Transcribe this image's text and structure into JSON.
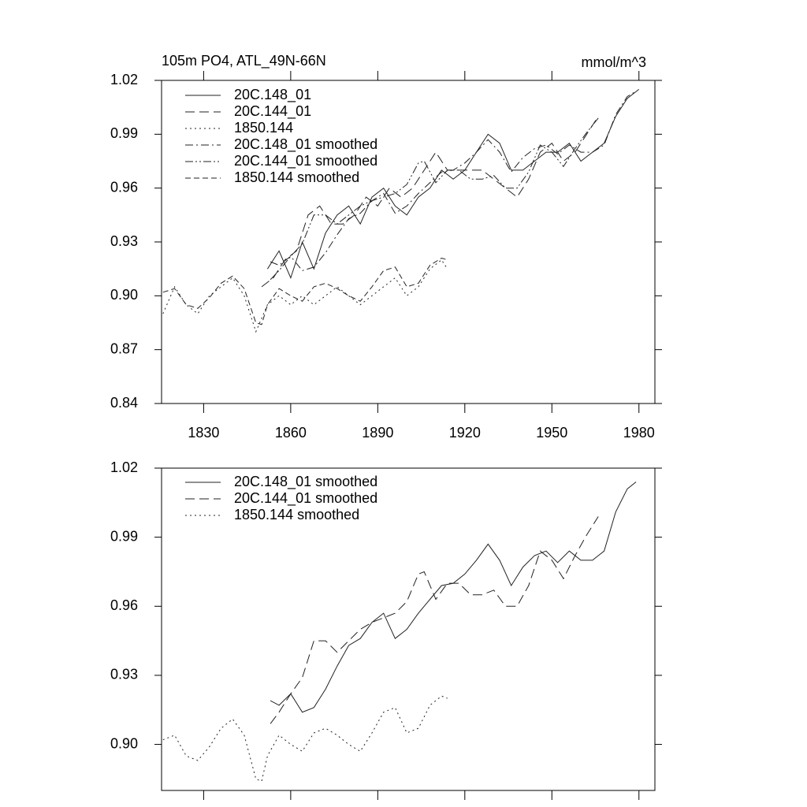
{
  "chart_data": [
    {
      "type": "line",
      "title": "105m PO4, ATL_49N-66N",
      "units": "mmol/m^3",
      "xlim": [
        1815.5,
        1985.5
      ],
      "xticks": [
        1830,
        1860,
        1890,
        1920,
        1950,
        1980
      ],
      "ylim": [
        0.84,
        1.02
      ],
      "yticks": [
        0.84,
        0.87,
        {
          "value": 0.9,
          "label": "0.90"
        },
        0.93,
        0.96,
        0.99,
        1.02
      ],
      "series": [
        {
          "name": "20C.148_01",
          "color": "#222222",
          "dash": "solid",
          "x": [
            1852,
            1856,
            1860,
            1864,
            1868,
            1872,
            1876,
            1880,
            1884,
            1888,
            1892,
            1896,
            1900,
            1904,
            1908,
            1912,
            1916,
            1920,
            1924,
            1928,
            1932,
            1936,
            1940,
            1944,
            1948,
            1952,
            1956,
            1960,
            1964,
            1968,
            1972,
            1976,
            1980
          ],
          "values": [
            0.915,
            0.925,
            0.91,
            0.93,
            0.915,
            0.935,
            0.945,
            0.95,
            0.94,
            0.955,
            0.96,
            0.95,
            0.945,
            0.955,
            0.96,
            0.97,
            0.965,
            0.97,
            0.98,
            0.99,
            0.985,
            0.97,
            0.97,
            0.975,
            0.98,
            0.98,
            0.985,
            0.975,
            0.98,
            0.985,
            1.0,
            1.01,
            1.015
          ]
        },
        {
          "name": "20C.144_01",
          "color": "#222222",
          "dash": "dash",
          "x": [
            1850,
            1854,
            1858,
            1862,
            1866,
            1870,
            1874,
            1878,
            1882,
            1886,
            1890,
            1894,
            1898,
            1902,
            1906,
            1910,
            1914,
            1918,
            1922,
            1926,
            1930,
            1934,
            1938,
            1942,
            1946,
            1950,
            1954,
            1958,
            1962,
            1966
          ],
          "values": [
            0.905,
            0.91,
            0.92,
            0.925,
            0.945,
            0.95,
            0.94,
            0.94,
            0.945,
            0.955,
            0.95,
            0.96,
            0.955,
            0.96,
            0.97,
            0.98,
            0.97,
            0.97,
            0.97,
            0.97,
            0.965,
            0.96,
            0.955,
            0.965,
            0.98,
            0.985,
            0.975,
            0.98,
            0.99,
            1.0
          ]
        },
        {
          "name": "1850.144",
          "color": "#222222",
          "dash": "dot",
          "x": [
            1816,
            1820,
            1824,
            1828,
            1832,
            1836,
            1840,
            1844,
            1848,
            1852,
            1856,
            1860,
            1864,
            1868,
            1872,
            1876,
            1880,
            1884,
            1888,
            1892,
            1896,
            1900,
            1904,
            1908,
            1912,
            1914
          ],
          "values": [
            0.89,
            0.905,
            0.895,
            0.89,
            0.9,
            0.905,
            0.91,
            0.9,
            0.88,
            0.895,
            0.9,
            0.895,
            0.9,
            0.895,
            0.9,
            0.905,
            0.9,
            0.895,
            0.9,
            0.905,
            0.91,
            0.9,
            0.905,
            0.915,
            0.92,
            0.915
          ]
        },
        {
          "name": "20C.148_01 smoothed",
          "color": "#222222",
          "dash": "dashdot",
          "x": [
            1853,
            1856,
            1860,
            1864,
            1868,
            1872,
            1876,
            1880,
            1884,
            1888,
            1892,
            1896,
            1900,
            1904,
            1908,
            1912,
            1916,
            1920,
            1924,
            1928,
            1932,
            1936,
            1940,
            1944,
            1948,
            1952,
            1956,
            1960,
            1964,
            1968,
            1972,
            1976,
            1979
          ],
          "values": [
            0.919,
            0.917,
            0.922,
            0.914,
            0.916,
            0.924,
            0.934,
            0.943,
            0.946,
            0.953,
            0.957,
            0.946,
            0.95,
            0.957,
            0.963,
            0.969,
            0.97,
            0.974,
            0.98,
            0.987,
            0.98,
            0.969,
            0.977,
            0.982,
            0.984,
            0.979,
            0.984,
            0.98,
            0.98,
            0.984,
            1.001,
            1.011,
            1.014
          ]
        },
        {
          "name": "20C.144_01 smoothed",
          "color": "#222222",
          "dash": "dashdotdot",
          "x": [
            1853,
            1856,
            1860,
            1864,
            1868,
            1872,
            1876,
            1880,
            1884,
            1888,
            1892,
            1896,
            1900,
            1904,
            1906,
            1910,
            1914,
            1918,
            1922,
            1926,
            1930,
            1934,
            1938,
            1942,
            1946,
            1950,
            1954,
            1958,
            1962,
            1966
          ],
          "values": [
            0.909,
            0.914,
            0.922,
            0.929,
            0.945,
            0.945,
            0.94,
            0.945,
            0.95,
            0.953,
            0.955,
            0.957,
            0.962,
            0.974,
            0.975,
            0.963,
            0.97,
            0.97,
            0.965,
            0.965,
            0.967,
            0.96,
            0.96,
            0.969,
            0.984,
            0.98,
            0.972,
            0.982,
            0.991,
            0.999
          ]
        },
        {
          "name": "1850.144 smoothed",
          "color": "#222222",
          "dash": "shortdash",
          "x": [
            1816,
            1820,
            1824,
            1828,
            1832,
            1836,
            1840,
            1844,
            1848,
            1850,
            1852,
            1856,
            1860,
            1864,
            1868,
            1872,
            1876,
            1880,
            1884,
            1888,
            1892,
            1896,
            1900,
            1904,
            1908,
            1912,
            1914
          ],
          "values": [
            0.902,
            0.904,
            0.895,
            0.893,
            0.899,
            0.907,
            0.911,
            0.904,
            0.885,
            0.884,
            0.895,
            0.904,
            0.9,
            0.897,
            0.905,
            0.907,
            0.904,
            0.9,
            0.897,
            0.905,
            0.914,
            0.916,
            0.905,
            0.907,
            0.917,
            0.921,
            0.92
          ]
        }
      ]
    },
    {
      "type": "line",
      "xlim": [
        1815.5,
        1985.5
      ],
      "xticks": [
        1830,
        1860,
        1890,
        1920,
        1950,
        1980
      ],
      "ylim": [
        0.88,
        1.02
      ],
      "yticks": [
        {
          "value": 0.9,
          "label": "0.90"
        },
        0.93,
        0.96,
        0.99,
        1.02
      ],
      "series": [
        {
          "name": "20C.148_01 smoothed",
          "color": "#222222",
          "dash": "solid",
          "x": [
            1853,
            1856,
            1860,
            1864,
            1868,
            1872,
            1876,
            1880,
            1884,
            1888,
            1892,
            1896,
            1900,
            1904,
            1908,
            1912,
            1916,
            1920,
            1924,
            1928,
            1932,
            1936,
            1940,
            1944,
            1948,
            1952,
            1956,
            1960,
            1964,
            1968,
            1972,
            1976,
            1979
          ],
          "values": [
            0.919,
            0.917,
            0.922,
            0.914,
            0.916,
            0.924,
            0.934,
            0.943,
            0.946,
            0.953,
            0.957,
            0.946,
            0.95,
            0.957,
            0.963,
            0.969,
            0.97,
            0.974,
            0.98,
            0.987,
            0.98,
            0.969,
            0.977,
            0.982,
            0.984,
            0.979,
            0.984,
            0.98,
            0.98,
            0.984,
            1.001,
            1.011,
            1.014
          ]
        },
        {
          "name": "20C.144_01 smoothed",
          "color": "#222222",
          "dash": "dash",
          "x": [
            1853,
            1856,
            1860,
            1864,
            1868,
            1872,
            1876,
            1880,
            1884,
            1888,
            1892,
            1896,
            1900,
            1904,
            1906,
            1910,
            1914,
            1918,
            1922,
            1926,
            1930,
            1934,
            1938,
            1942,
            1946,
            1950,
            1954,
            1958,
            1962,
            1966
          ],
          "values": [
            0.909,
            0.914,
            0.922,
            0.929,
            0.945,
            0.945,
            0.94,
            0.945,
            0.95,
            0.953,
            0.955,
            0.957,
            0.962,
            0.974,
            0.975,
            0.963,
            0.97,
            0.97,
            0.965,
            0.965,
            0.967,
            0.96,
            0.96,
            0.969,
            0.984,
            0.98,
            0.972,
            0.982,
            0.991,
            0.999
          ]
        },
        {
          "name": "1850.144 smoothed",
          "color": "#222222",
          "dash": "dot",
          "x": [
            1816,
            1820,
            1824,
            1828,
            1832,
            1836,
            1840,
            1844,
            1848,
            1850,
            1852,
            1856,
            1860,
            1864,
            1868,
            1872,
            1876,
            1880,
            1884,
            1888,
            1892,
            1896,
            1900,
            1904,
            1908,
            1912,
            1914
          ],
          "values": [
            0.902,
            0.904,
            0.895,
            0.893,
            0.899,
            0.907,
            0.911,
            0.904,
            0.885,
            0.884,
            0.895,
            0.904,
            0.9,
            0.897,
            0.905,
            0.907,
            0.904,
            0.9,
            0.897,
            0.905,
            0.914,
            0.916,
            0.905,
            0.907,
            0.917,
            0.921,
            0.92
          ]
        }
      ]
    }
  ]
}
